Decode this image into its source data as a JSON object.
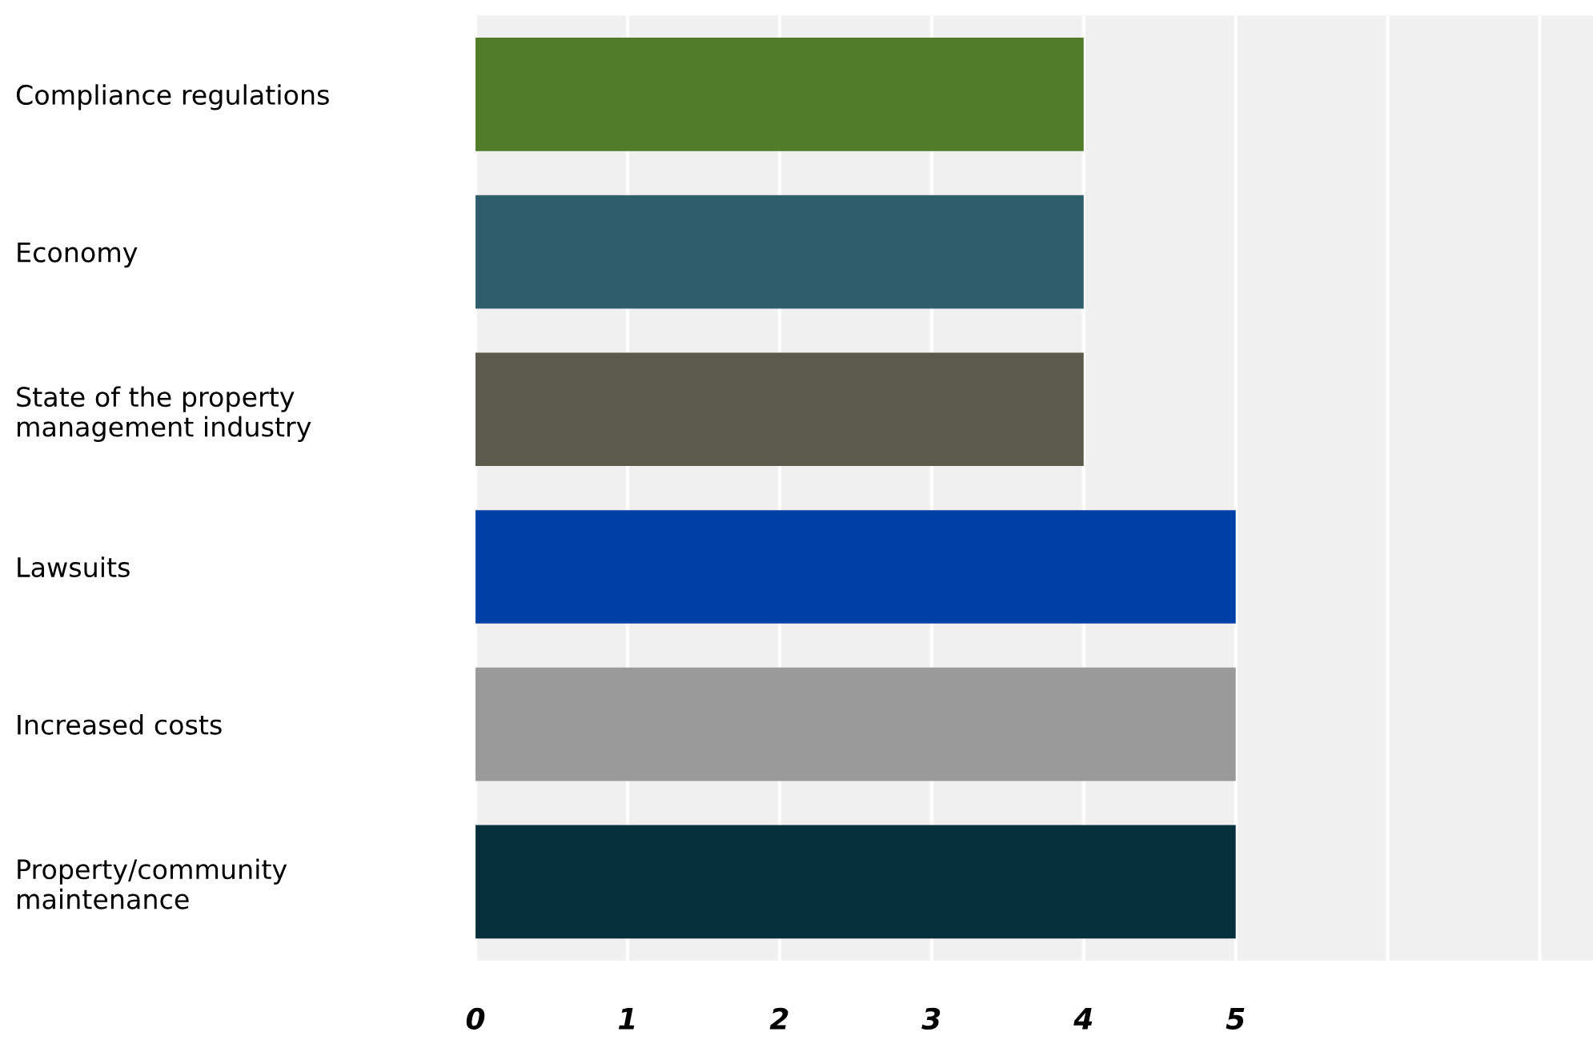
{
  "chart_data": {
    "type": "bar",
    "orientation": "horizontal",
    "categories": [
      "Compliance regulations",
      "Economy",
      "State of the property\nmanagement industry",
      "Lawsuits",
      "Increased costs",
      "Property/community\nmaintenance"
    ],
    "values": [
      4,
      4,
      4,
      5,
      5,
      5
    ],
    "colors": [
      "#507c2a",
      "#2e5e6c",
      "#5b5b4b",
      "#0041a8",
      "#9a9a9a",
      "#07303f"
    ],
    "xlim": [
      0,
      7.35
    ],
    "xticks": [
      0,
      1,
      2,
      3,
      4,
      5,
      {
        "value": 6,
        "label": null
      },
      {
        "value": 7,
        "label": null
      }
    ],
    "grid": "x",
    "legend": false
  }
}
